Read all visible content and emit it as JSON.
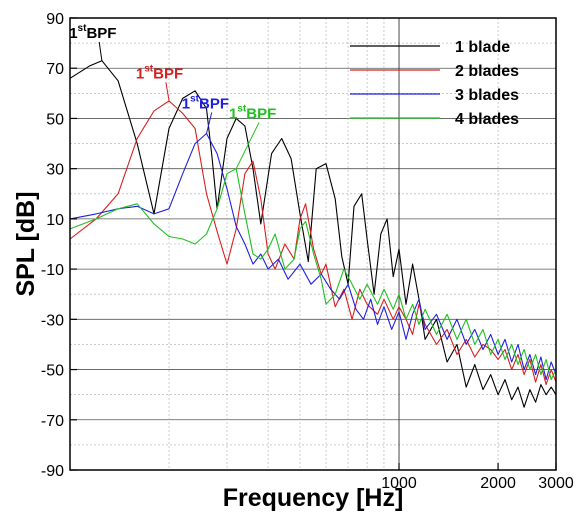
{
  "chart_data": {
    "type": "line",
    "xlabel": "Frequency [Hz]",
    "ylabel": "SPL [dB]",
    "xscale": "log",
    "xlim": [
      100,
      3000
    ],
    "ylim": [
      -90,
      90
    ],
    "yticks": [
      -90,
      -70,
      -50,
      -30,
      -10,
      10,
      30,
      50,
      70,
      90
    ],
    "xticks": [
      1000,
      2000,
      3000
    ],
    "grid": "major and minor",
    "legend_position": "top-right",
    "series": [
      {
        "name": "1 blade",
        "color": "#000000",
        "points": [
          [
            100,
            66
          ],
          [
            115,
            71
          ],
          [
            125,
            73
          ],
          [
            140,
            65
          ],
          [
            160,
            40
          ],
          [
            180,
            12
          ],
          [
            200,
            46
          ],
          [
            220,
            58
          ],
          [
            240,
            61
          ],
          [
            260,
            54
          ],
          [
            270,
            35
          ],
          [
            280,
            14
          ],
          [
            300,
            42
          ],
          [
            320,
            50
          ],
          [
            340,
            47
          ],
          [
            360,
            30
          ],
          [
            380,
            8
          ],
          [
            410,
            36
          ],
          [
            440,
            42
          ],
          [
            470,
            34
          ],
          [
            500,
            12
          ],
          [
            530,
            -7
          ],
          [
            560,
            30
          ],
          [
            600,
            32
          ],
          [
            640,
            18
          ],
          [
            670,
            -5
          ],
          [
            700,
            -16
          ],
          [
            730,
            15
          ],
          [
            770,
            20
          ],
          [
            800,
            2
          ],
          [
            840,
            -20
          ],
          [
            880,
            4
          ],
          [
            920,
            10
          ],
          [
            960,
            -13
          ],
          [
            1000,
            -2
          ],
          [
            1050,
            -24
          ],
          [
            1100,
            -8
          ],
          [
            1150,
            -22
          ],
          [
            1200,
            -38
          ],
          [
            1300,
            -30
          ],
          [
            1400,
            -47
          ],
          [
            1500,
            -40
          ],
          [
            1600,
            -57
          ],
          [
            1700,
            -48
          ],
          [
            1800,
            -58
          ],
          [
            1900,
            -52
          ],
          [
            2000,
            -60
          ],
          [
            2100,
            -54
          ],
          [
            2200,
            -62
          ],
          [
            2300,
            -57
          ],
          [
            2400,
            -65
          ],
          [
            2500,
            -58
          ],
          [
            2600,
            -63
          ],
          [
            2700,
            -56
          ],
          [
            2800,
            -60
          ],
          [
            2900,
            -57
          ],
          [
            3000,
            -60
          ]
        ]
      },
      {
        "name": "2 blades",
        "color": "#d62020",
        "points": [
          [
            100,
            2
          ],
          [
            120,
            10
          ],
          [
            140,
            20
          ],
          [
            160,
            42
          ],
          [
            180,
            53
          ],
          [
            200,
            57
          ],
          [
            220,
            52
          ],
          [
            240,
            46
          ],
          [
            260,
            20
          ],
          [
            280,
            5
          ],
          [
            300,
            -8
          ],
          [
            320,
            6
          ],
          [
            340,
            28
          ],
          [
            360,
            33
          ],
          [
            380,
            18
          ],
          [
            400,
            -4
          ],
          [
            420,
            -10
          ],
          [
            450,
            0
          ],
          [
            480,
            -6
          ],
          [
            500,
            10
          ],
          [
            520,
            16
          ],
          [
            550,
            -2
          ],
          [
            580,
            -12
          ],
          [
            600,
            -8
          ],
          [
            640,
            -25
          ],
          [
            680,
            -18
          ],
          [
            720,
            -30
          ],
          [
            760,
            -18
          ],
          [
            800,
            -24
          ],
          [
            860,
            -28
          ],
          [
            900,
            -22
          ],
          [
            960,
            -30
          ],
          [
            1000,
            -25
          ],
          [
            1050,
            -30
          ],
          [
            1100,
            -36
          ],
          [
            1150,
            -24
          ],
          [
            1200,
            -32
          ],
          [
            1300,
            -40
          ],
          [
            1400,
            -34
          ],
          [
            1500,
            -44
          ],
          [
            1600,
            -38
          ],
          [
            1700,
            -45
          ],
          [
            1800,
            -40
          ],
          [
            1900,
            -42
          ],
          [
            2000,
            -46
          ],
          [
            2100,
            -42
          ],
          [
            2200,
            -50
          ],
          [
            2300,
            -44
          ],
          [
            2400,
            -52
          ],
          [
            2500,
            -46
          ],
          [
            2600,
            -55
          ],
          [
            2700,
            -48
          ],
          [
            2800,
            -56
          ],
          [
            2900,
            -50
          ],
          [
            3000,
            -55
          ]
        ]
      },
      {
        "name": "3 blades",
        "color": "#2020e0",
        "points": [
          [
            100,
            10
          ],
          [
            120,
            12
          ],
          [
            140,
            14
          ],
          [
            160,
            15
          ],
          [
            180,
            12
          ],
          [
            200,
            14
          ],
          [
            220,
            28
          ],
          [
            240,
            40
          ],
          [
            260,
            44
          ],
          [
            280,
            36
          ],
          [
            300,
            22
          ],
          [
            320,
            7
          ],
          [
            340,
            0
          ],
          [
            360,
            -8
          ],
          [
            380,
            -4
          ],
          [
            400,
            -10
          ],
          [
            430,
            -6
          ],
          [
            460,
            -14
          ],
          [
            500,
            -8
          ],
          [
            540,
            -16
          ],
          [
            580,
            -12
          ],
          [
            620,
            -18
          ],
          [
            660,
            -22
          ],
          [
            700,
            -16
          ],
          [
            740,
            -26
          ],
          [
            780,
            -30
          ],
          [
            820,
            -22
          ],
          [
            860,
            -32
          ],
          [
            900,
            -25
          ],
          [
            950,
            -34
          ],
          [
            1000,
            -27
          ],
          [
            1050,
            -38
          ],
          [
            1100,
            -28
          ],
          [
            1150,
            -22
          ],
          [
            1200,
            -34
          ],
          [
            1300,
            -28
          ],
          [
            1400,
            -38
          ],
          [
            1500,
            -30
          ],
          [
            1600,
            -40
          ],
          [
            1700,
            -34
          ],
          [
            1800,
            -42
          ],
          [
            1900,
            -36
          ],
          [
            2000,
            -44
          ],
          [
            2100,
            -38
          ],
          [
            2200,
            -47
          ],
          [
            2300,
            -40
          ],
          [
            2400,
            -50
          ],
          [
            2500,
            -44
          ],
          [
            2600,
            -52
          ],
          [
            2700,
            -45
          ],
          [
            2800,
            -54
          ],
          [
            2900,
            -47
          ],
          [
            3000,
            -52
          ]
        ]
      },
      {
        "name": "4 blades",
        "color": "#20c020",
        "points": [
          [
            100,
            6
          ],
          [
            120,
            10
          ],
          [
            140,
            14
          ],
          [
            160,
            16
          ],
          [
            180,
            8
          ],
          [
            200,
            3
          ],
          [
            220,
            2
          ],
          [
            240,
            0
          ],
          [
            260,
            4
          ],
          [
            280,
            14
          ],
          [
            300,
            28
          ],
          [
            320,
            30
          ],
          [
            340,
            12
          ],
          [
            360,
            -4
          ],
          [
            380,
            -6
          ],
          [
            400,
            -2
          ],
          [
            420,
            4
          ],
          [
            450,
            -10
          ],
          [
            480,
            -6
          ],
          [
            500,
            6
          ],
          [
            520,
            9
          ],
          [
            550,
            -4
          ],
          [
            580,
            -14
          ],
          [
            600,
            -24
          ],
          [
            640,
            -20
          ],
          [
            680,
            -10
          ],
          [
            720,
            -16
          ],
          [
            760,
            -22
          ],
          [
            800,
            -16
          ],
          [
            860,
            -24
          ],
          [
            900,
            -18
          ],
          [
            960,
            -26
          ],
          [
            1000,
            -20
          ],
          [
            1050,
            -30
          ],
          [
            1100,
            -24
          ],
          [
            1150,
            -32
          ],
          [
            1200,
            -26
          ],
          [
            1300,
            -36
          ],
          [
            1400,
            -28
          ],
          [
            1500,
            -38
          ],
          [
            1600,
            -30
          ],
          [
            1700,
            -40
          ],
          [
            1800,
            -34
          ],
          [
            1900,
            -44
          ],
          [
            2000,
            -38
          ],
          [
            2100,
            -46
          ],
          [
            2200,
            -40
          ],
          [
            2300,
            -48
          ],
          [
            2400,
            -42
          ],
          [
            2500,
            -50
          ],
          [
            2600,
            -44
          ],
          [
            2700,
            -52
          ],
          [
            2800,
            -46
          ],
          [
            2900,
            -54
          ],
          [
            3000,
            -50
          ]
        ]
      }
    ],
    "annotations": [
      {
        "sup": "st",
        "pre": "1",
        "text": "BPF",
        "color": "#000000",
        "x": 125,
        "y": 73,
        "lx": 116,
        "ly": 82
      },
      {
        "sup": "st",
        "pre": "1",
        "text": "BPF",
        "color": "#d62020",
        "x": 200,
        "y": 57,
        "lx": 185,
        "ly": 66
      },
      {
        "sup": "st",
        "pre": "1",
        "text": "BPF",
        "color": "#2020e0",
        "x": 260,
        "y": 44,
        "lx": 255,
        "ly": 54
      },
      {
        "sup": "st",
        "pre": "1",
        "text": "BPF",
        "color": "#20c020",
        "x": 320,
        "y": 30,
        "lx": 355,
        "ly": 50
      }
    ]
  }
}
